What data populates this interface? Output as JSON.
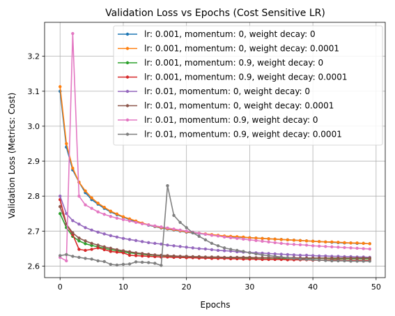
{
  "chart_data": {
    "type": "line",
    "title": "Validation Loss vs Epochs (Cost Sensitive LR)",
    "xlabel": "Epochs",
    "ylabel": "Validation Loss (Metrics: Cost)",
    "xlim": [
      -2.45,
      51.45
    ],
    "ylim": [
      2.567,
      3.297
    ],
    "xticks": [
      0,
      10,
      20,
      30,
      40,
      50
    ],
    "yticks": [
      2.6,
      2.7,
      2.8,
      2.9,
      3.0,
      3.1,
      3.2
    ],
    "xtick_labels": [
      "0",
      "10",
      "20",
      "30",
      "40",
      "50"
    ],
    "ytick_labels": [
      "2.6",
      "2.7",
      "2.8",
      "2.9",
      "3.0",
      "3.1",
      "3.2"
    ],
    "grid": true,
    "legend_position": "top-right",
    "x": [
      0,
      1,
      2,
      3,
      4,
      5,
      6,
      7,
      8,
      9,
      10,
      11,
      12,
      13,
      14,
      15,
      16,
      17,
      18,
      19,
      20,
      21,
      22,
      23,
      24,
      25,
      26,
      27,
      28,
      29,
      30,
      31,
      32,
      33,
      34,
      35,
      36,
      37,
      38,
      39,
      40,
      41,
      42,
      43,
      44,
      45,
      46,
      47,
      48,
      49
    ],
    "series": [
      {
        "name": "lr: 0.001, momentum: 0, weight decay: 0",
        "color": "#1f77b4",
        "values": [
          3.1,
          2.94,
          2.875,
          2.84,
          2.81,
          2.79,
          2.777,
          2.765,
          2.755,
          2.747,
          2.74,
          2.733,
          2.727,
          2.722,
          2.717,
          2.713,
          2.709,
          2.706,
          2.703,
          2.7,
          2.697,
          2.695,
          2.693,
          2.691,
          2.689,
          2.687,
          2.685,
          2.684,
          2.683,
          2.682,
          2.681,
          2.68,
          2.679,
          2.678,
          2.677,
          2.676,
          2.675,
          2.674,
          2.673,
          2.672,
          2.671,
          2.67,
          2.669,
          2.668,
          2.667,
          2.666,
          2.666,
          2.665,
          2.665,
          2.664
        ]
      },
      {
        "name": "lr: 0.001, momentum: 0, weight decay: 0.0001",
        "color": "#ff7f0e",
        "values": [
          3.113,
          2.95,
          2.88,
          2.84,
          2.815,
          2.795,
          2.78,
          2.768,
          2.757,
          2.749,
          2.741,
          2.735,
          2.729,
          2.723,
          2.718,
          2.714,
          2.71,
          2.707,
          2.704,
          2.701,
          2.698,
          2.696,
          2.694,
          2.692,
          2.69,
          2.688,
          2.686,
          2.685,
          2.684,
          2.683,
          2.681,
          2.68,
          2.679,
          2.678,
          2.677,
          2.676,
          2.675,
          2.674,
          2.673,
          2.672,
          2.671,
          2.67,
          2.669,
          2.669,
          2.668,
          2.667,
          2.666,
          2.666,
          2.665,
          2.664
        ]
      },
      {
        "name": "lr: 0.001, momentum: 0.9, weight decay: 0",
        "color": "#2ca02c",
        "values": [
          2.75,
          2.71,
          2.685,
          2.672,
          2.664,
          2.659,
          2.655,
          2.651,
          2.647,
          2.644,
          2.641,
          2.638,
          2.636,
          2.634,
          2.632,
          2.631,
          2.63,
          2.629,
          2.628,
          2.627,
          2.627,
          2.626,
          2.626,
          2.625,
          2.625,
          2.625,
          2.624,
          2.624,
          2.624,
          2.624,
          2.623,
          2.623,
          2.623,
          2.623,
          2.623,
          2.622,
          2.622,
          2.622,
          2.622,
          2.622,
          2.622,
          2.622,
          2.622,
          2.621,
          2.621,
          2.621,
          2.621,
          2.621,
          2.621,
          2.621
        ]
      },
      {
        "name": "lr: 0.001, momentum: 0.9, weight decay: 0.0001",
        "color": "#d62728",
        "values": [
          2.79,
          2.72,
          2.69,
          2.648,
          2.645,
          2.648,
          2.652,
          2.647,
          2.642,
          2.64,
          2.638,
          2.631,
          2.63,
          2.629,
          2.628,
          2.627,
          2.626,
          2.626,
          2.625,
          2.625,
          2.624,
          2.624,
          2.623,
          2.623,
          2.622,
          2.622,
          2.622,
          2.621,
          2.621,
          2.62,
          2.62,
          2.62,
          2.619,
          2.619,
          2.619,
          2.619,
          2.618,
          2.618,
          2.618,
          2.618,
          2.617,
          2.617,
          2.617,
          2.617,
          2.617,
          2.616,
          2.616,
          2.616,
          2.616,
          2.616
        ]
      },
      {
        "name": "lr: 0.01, momentum: 0, weight decay: 0",
        "color": "#9467bd",
        "values": [
          2.8,
          2.75,
          2.73,
          2.72,
          2.71,
          2.703,
          2.697,
          2.692,
          2.687,
          2.683,
          2.679,
          2.676,
          2.673,
          2.67,
          2.667,
          2.665,
          2.663,
          2.66,
          2.658,
          2.656,
          2.654,
          2.652,
          2.65,
          2.649,
          2.647,
          2.645,
          2.644,
          2.643,
          2.641,
          2.64,
          2.639,
          2.638,
          2.637,
          2.636,
          2.635,
          2.634,
          2.633,
          2.632,
          2.631,
          2.631,
          2.63,
          2.629,
          2.629,
          2.628,
          2.628,
          2.627,
          2.627,
          2.626,
          2.626,
          2.625
        ]
      },
      {
        "name": "lr: 0.01, momentum: 0, weight decay: 0.0001",
        "color": "#8c564b",
        "values": [
          2.77,
          2.72,
          2.695,
          2.68,
          2.672,
          2.665,
          2.66,
          2.655,
          2.651,
          2.647,
          2.644,
          2.641,
          2.638,
          2.636,
          2.634,
          2.632,
          2.631,
          2.63,
          2.629,
          2.628,
          2.628,
          2.627,
          2.627,
          2.626,
          2.626,
          2.626,
          2.625,
          2.625,
          2.625,
          2.625,
          2.625,
          2.624,
          2.624,
          2.624,
          2.624,
          2.624,
          2.624,
          2.624,
          2.623,
          2.623,
          2.623,
          2.623,
          2.623,
          2.623,
          2.623,
          2.623,
          2.623,
          2.623,
          2.623,
          2.623
        ]
      },
      {
        "name": "lr: 0.01, momentum: 0.9, weight decay: 0",
        "color": "#e377c2",
        "values": [
          2.625,
          2.615,
          3.265,
          2.8,
          2.775,
          2.765,
          2.755,
          2.748,
          2.742,
          2.737,
          2.733,
          2.729,
          2.725,
          2.721,
          2.718,
          2.715,
          2.712,
          2.709,
          2.706,
          2.703,
          2.7,
          2.697,
          2.694,
          2.691,
          2.688,
          2.686,
          2.683,
          2.681,
          2.679,
          2.677,
          2.675,
          2.673,
          2.671,
          2.669,
          2.667,
          2.665,
          2.663,
          2.662,
          2.661,
          2.66,
          2.658,
          2.657,
          2.656,
          2.655,
          2.654,
          2.653,
          2.652,
          2.651,
          2.65,
          2.649
        ]
      },
      {
        "name": "lr: 0.01, momentum: 0.9, weight decay: 0.0001",
        "color": "#7f7f7f",
        "values": [
          2.63,
          2.633,
          2.628,
          2.625,
          2.622,
          2.62,
          2.615,
          2.613,
          2.605,
          2.603,
          2.605,
          2.606,
          2.612,
          2.611,
          2.61,
          2.608,
          2.602,
          2.83,
          2.745,
          2.725,
          2.71,
          2.695,
          2.685,
          2.675,
          2.665,
          2.658,
          2.652,
          2.648,
          2.645,
          2.642,
          2.638,
          2.635,
          2.632,
          2.63,
          2.628,
          2.626,
          2.624,
          2.622,
          2.62,
          2.619,
          2.618,
          2.617,
          2.616,
          2.615,
          2.615,
          2.615,
          2.614,
          2.614,
          2.614,
          2.614
        ]
      }
    ]
  }
}
